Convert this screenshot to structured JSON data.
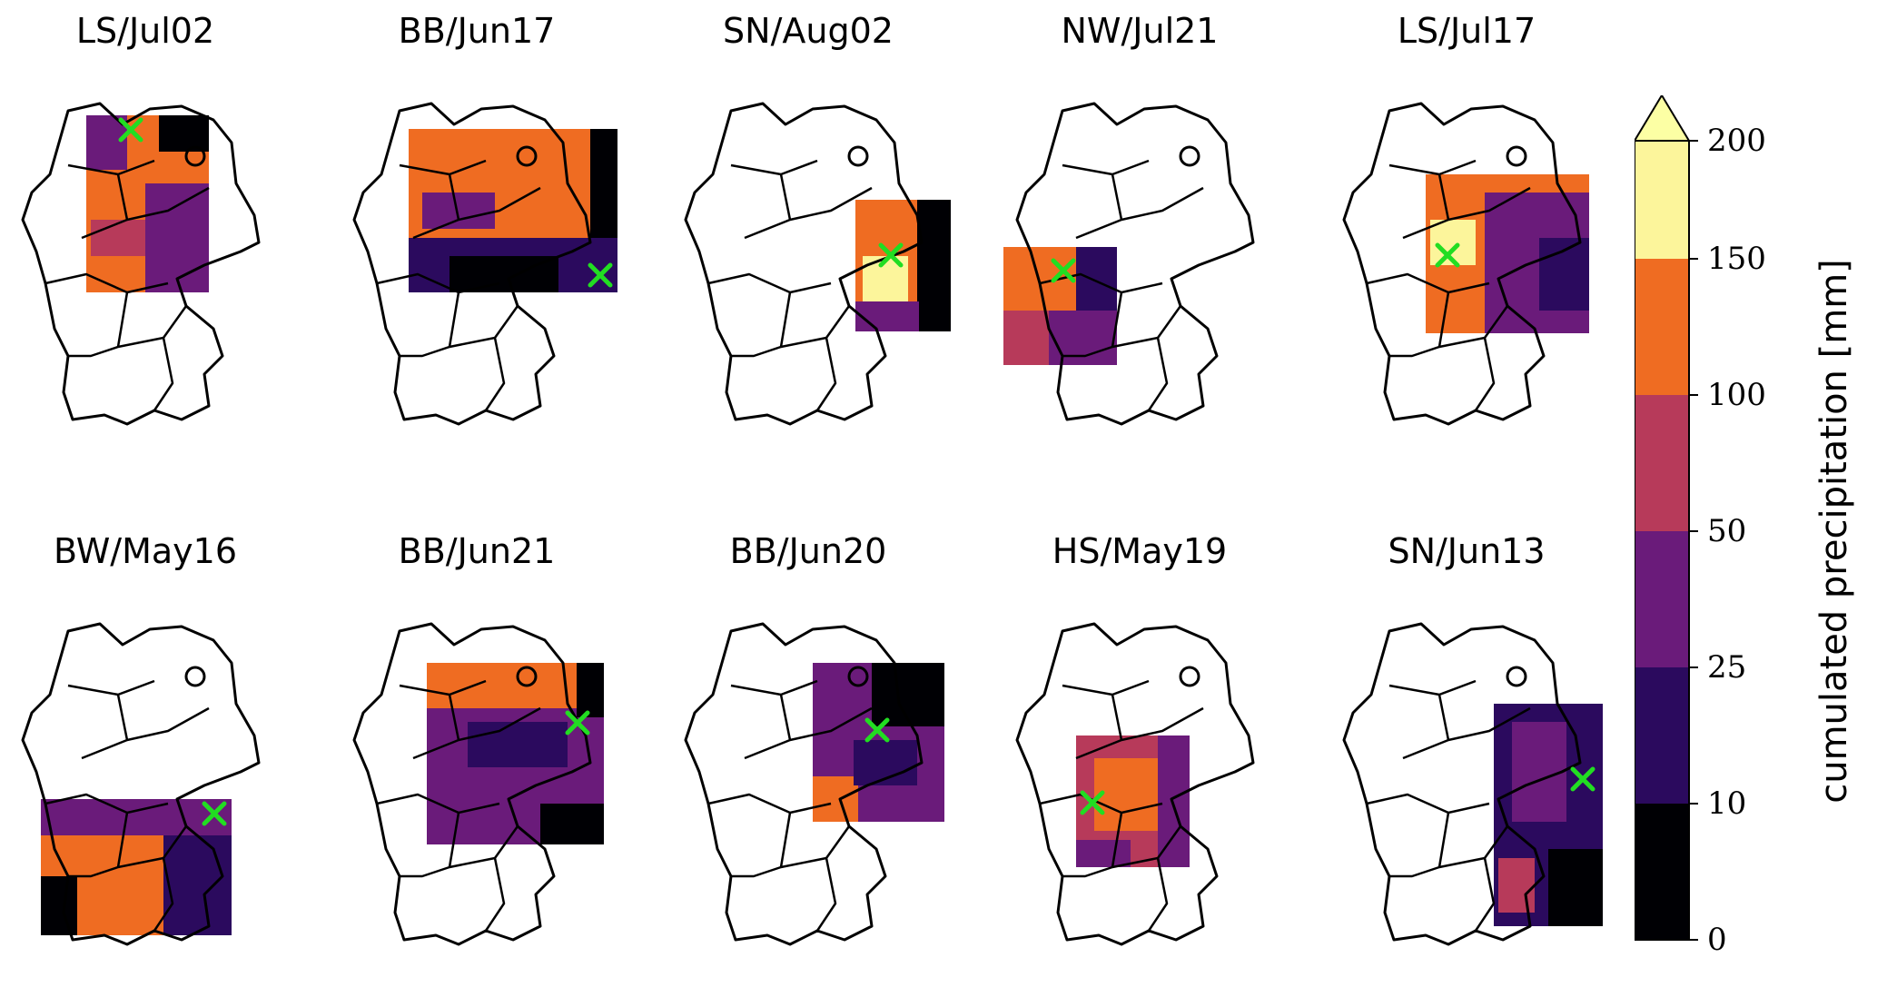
{
  "figure": {
    "panels": [
      {
        "title": "LS/Jul02"
      },
      {
        "title": "BB/Jun17"
      },
      {
        "title": "SN/Aug02"
      },
      {
        "title": "NW/Jul21"
      },
      {
        "title": "LS/Jul17"
      },
      {
        "title": "BW/May16"
      },
      {
        "title": "BB/Jun21"
      },
      {
        "title": "BB/Jun20"
      },
      {
        "title": "HS/May19"
      },
      {
        "title": "SN/Jun13"
      }
    ],
    "marker_color": "#22dd22"
  },
  "colorbar": {
    "label": "cumulated precipitation [mm]",
    "extend": "max",
    "ticks": [
      "0",
      "10",
      "25",
      "50",
      "100",
      "150",
      "200"
    ],
    "colors": [
      "#000004",
      "#2b0a5e",
      "#6a1b7a",
      "#b73a5a",
      "#ef6c22",
      "#fcf59b"
    ],
    "extend_color": "#fcffa4"
  }
}
